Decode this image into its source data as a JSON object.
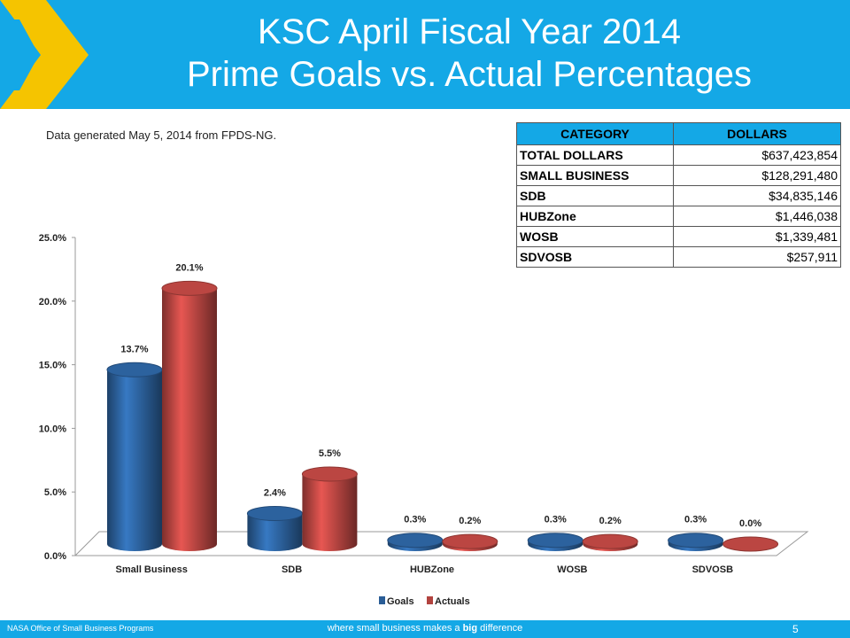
{
  "slide": {
    "title_line1": "KSC April Fiscal Year 2014",
    "title_line2": "Prime Goals vs. Actual Percentages",
    "source_note": "Data generated May 5, 2014 from FPDS-NG."
  },
  "table": {
    "headers": [
      "CATEGORY",
      "DOLLARS"
    ],
    "rows": [
      [
        "TOTAL DOLLARS",
        "$637,423,854"
      ],
      [
        "SMALL BUSINESS",
        "$128,291,480"
      ],
      [
        "SDB",
        "$34,835,146"
      ],
      [
        "HUBZone",
        "$1,446,038"
      ],
      [
        "WOSB",
        "$1,339,481"
      ],
      [
        "SDVOSB",
        "$257,911"
      ]
    ]
  },
  "chart_data": {
    "type": "bar",
    "categories": [
      "Small Business",
      "SDB",
      "HUBZone",
      "WOSB",
      "SDVOSB"
    ],
    "series": [
      {
        "name": "Goals",
        "values": [
          13.7,
          2.4,
          0.3,
          0.3,
          0.3
        ],
        "labels": [
          "13.7%",
          "2.4%",
          "0.3%",
          "0.3%",
          "0.3%"
        ],
        "color": "#2a5d96"
      },
      {
        "name": "Actuals",
        "values": [
          20.1,
          5.5,
          0.2,
          0.2,
          0.0
        ],
        "labels": [
          "20.1%",
          "5.5%",
          "0.2%",
          "0.2%",
          "0.0%"
        ],
        "color": "#b2433f"
      }
    ],
    "ylim": [
      0,
      25
    ],
    "yticks": [
      "0.0%",
      "5.0%",
      "10.0%",
      "15.0%",
      "20.0%",
      "25.0%"
    ],
    "legend_position": "bottom",
    "grid": false
  },
  "footer": {
    "left": "NASA Office of Small Business Programs",
    "tagline_pre": "where small business makes a ",
    "tagline_bold": "big",
    "tagline_post": " difference",
    "page": "5"
  }
}
